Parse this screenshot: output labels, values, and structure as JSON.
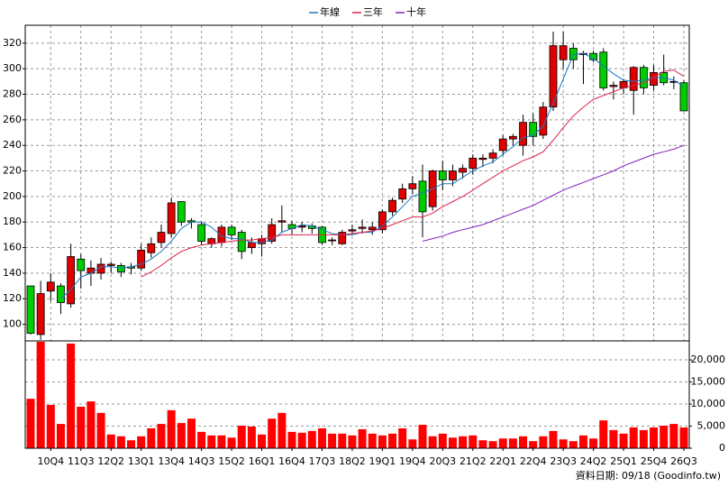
{
  "chart_data": {
    "type": "candlestick",
    "categories": [
      null,
      null,
      "10Q4",
      null,
      null,
      "11Q3",
      null,
      null,
      "12Q2",
      null,
      null,
      "13Q1",
      null,
      null,
      "13Q4",
      null,
      null,
      "14Q3",
      null,
      null,
      "15Q2",
      null,
      null,
      "16Q1",
      null,
      null,
      "16Q4",
      null,
      null,
      "17Q3",
      null,
      null,
      "18Q2",
      null,
      null,
      "19Q1",
      null,
      null,
      "19Q4",
      null,
      null,
      "20Q3",
      null,
      null,
      "21Q2",
      null,
      null,
      "22Q1",
      null,
      null,
      "22Q4",
      null,
      null,
      "23Q3",
      null,
      null,
      "24Q2",
      null,
      null,
      "25Q1",
      null,
      null,
      "25Q4",
      null,
      null,
      "26Q3"
    ],
    "open": [
      130,
      92,
      126,
      130,
      116,
      151,
      140,
      140,
      146,
      146,
      145,
      144,
      156,
      164,
      171,
      196,
      181,
      178,
      163,
      164,
      176,
      172,
      160,
      163,
      165,
      180,
      178,
      176,
      177,
      176,
      166,
      163,
      173,
      175,
      174,
      174,
      188,
      198,
      206,
      212,
      192,
      220,
      213,
      219,
      222,
      229,
      230,
      236,
      245,
      240,
      258,
      248,
      270,
      307,
      316,
      311,
      312,
      313,
      286,
      285,
      283,
      301,
      287,
      297,
      290,
      289
    ],
    "high": [
      130,
      134,
      140,
      132,
      163,
      155,
      150,
      152,
      149,
      148,
      148,
      163,
      168,
      178,
      199,
      196,
      183,
      180,
      168,
      178,
      178,
      174,
      168,
      170,
      183,
      193,
      181,
      180,
      179,
      177,
      168,
      174,
      178,
      182,
      180,
      190,
      199,
      210,
      216,
      225,
      221,
      228,
      225,
      225,
      233,
      233,
      237,
      248,
      249,
      264,
      265,
      274,
      329,
      329,
      320,
      314,
      314,
      316,
      290,
      292,
      302,
      303,
      303,
      311,
      294,
      291
    ],
    "low": [
      92,
      88,
      118,
      108,
      113,
      128,
      130,
      135,
      140,
      137,
      139,
      142,
      152,
      160,
      168,
      177,
      175,
      162,
      160,
      161,
      166,
      151,
      155,
      153,
      163,
      172,
      170,
      172,
      171,
      162,
      162,
      162,
      170,
      171,
      170,
      171,
      185,
      195,
      202,
      168,
      189,
      205,
      208,
      214,
      217,
      223,
      226,
      232,
      240,
      232,
      240,
      245,
      267,
      300,
      300,
      288,
      305,
      283,
      276,
      280,
      264,
      280,
      283,
      287,
      284,
      267
    ],
    "close": [
      93,
      124,
      133,
      117,
      153,
      142,
      144,
      147,
      147,
      141,
      144,
      158,
      163,
      172,
      195,
      180,
      180,
      165,
      167,
      176,
      170,
      157,
      164,
      167,
      178,
      181,
      175,
      177,
      175,
      164,
      166,
      172,
      174,
      176,
      176,
      188,
      197,
      206,
      210,
      188,
      220,
      213,
      220,
      222,
      230,
      230,
      234,
      245,
      247,
      258,
      247,
      270,
      318,
      318,
      307,
      312,
      307,
      285,
      287,
      290,
      301,
      285,
      297,
      289,
      290,
      267
    ],
    "up_color": "#e00000",
    "down_color": "#00cc00",
    "series": [
      {
        "name": "年線",
        "color": "#1a78c8",
        "values": [
          null,
          null,
          null,
          120,
          127,
          137,
          140,
          145,
          145,
          144,
          145,
          147,
          151,
          157,
          165,
          175,
          180,
          180,
          176,
          169,
          167,
          167,
          164,
          164,
          166,
          172,
          175,
          178,
          177,
          174,
          171,
          170,
          170,
          172,
          172,
          177,
          184,
          192,
          200,
          203,
          206,
          210,
          210,
          215,
          220,
          224,
          227,
          233,
          239,
          246,
          248,
          255,
          273,
          292,
          311,
          312,
          308,
          302,
          296,
          291,
          290,
          291,
          293,
          293,
          291,
          286
        ]
      },
      {
        "name": "三年",
        "color": "#e0204a",
        "values": [
          null,
          null,
          null,
          null,
          null,
          null,
          null,
          null,
          null,
          null,
          null,
          137,
          141,
          146,
          152,
          157,
          160,
          162,
          163,
          164,
          165,
          166,
          166,
          167,
          168,
          170,
          170,
          170,
          170,
          170,
          170,
          170,
          171,
          172,
          173,
          175,
          178,
          181,
          184,
          184,
          187,
          192,
          196,
          200,
          205,
          210,
          215,
          220,
          224,
          228,
          231,
          235,
          244,
          254,
          263,
          270,
          276,
          279,
          282,
          285,
          287,
          289,
          293,
          298,
          299,
          294
        ]
      },
      {
        "name": "十年",
        "color": "#8020c0",
        "values": [
          null,
          null,
          null,
          null,
          null,
          null,
          null,
          null,
          null,
          null,
          null,
          null,
          null,
          null,
          null,
          null,
          null,
          null,
          null,
          null,
          null,
          null,
          null,
          null,
          null,
          null,
          null,
          null,
          null,
          null,
          null,
          null,
          null,
          null,
          null,
          null,
          null,
          null,
          null,
          165,
          167,
          169,
          172,
          174,
          176,
          178,
          181,
          184,
          187,
          190,
          193,
          197,
          201,
          205,
          208,
          211,
          214,
          217,
          220,
          224,
          227,
          230,
          233,
          235,
          237,
          240
        ]
      }
    ],
    "ylim": [
      87,
      334
    ],
    "yticks": [
      100,
      120,
      140,
      160,
      180,
      200,
      220,
      240,
      260,
      280,
      300,
      320
    ],
    "grid": true,
    "volume": {
      "color": "#ff0000",
      "values": [
        11200,
        24100,
        9800,
        5500,
        23700,
        9400,
        10600,
        8000,
        3100,
        2700,
        1800,
        2700,
        4500,
        5500,
        8600,
        5700,
        6700,
        3700,
        2900,
        2900,
        2400,
        5100,
        4900,
        3100,
        6700,
        8000,
        3700,
        3500,
        3900,
        4500,
        3300,
        3300,
        2900,
        4300,
        3300,
        2900,
        3300,
        4500,
        2000,
        5300,
        2700,
        3300,
        2400,
        2700,
        2900,
        1800,
        1600,
        2200,
        2200,
        2700,
        1600,
        2700,
        3900,
        2000,
        1600,
        2900,
        2200,
        6300,
        4100,
        3300,
        4700,
        4100,
        4700,
        5100,
        5500,
        4700
      ],
      "ylim": [
        0,
        24300
      ],
      "yticks": [
        0,
        {
          "value": 5000,
          "label": "5,000"
        },
        {
          "value": 10000,
          "label": "10,000"
        },
        {
          "value": 15000,
          "label": "15,000"
        },
        {
          "value": 20000,
          "label": "20,000"
        }
      ]
    },
    "footnote": "資料日期: 09/18 (Goodinfo.tw)"
  }
}
